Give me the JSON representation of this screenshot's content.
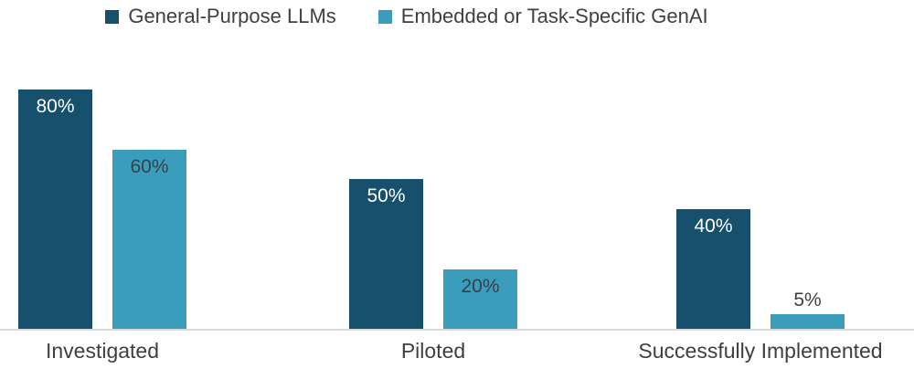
{
  "chart_data": {
    "type": "bar",
    "title": "",
    "categories": [
      "Investigated",
      "Piloted",
      "Successfully Implemented"
    ],
    "series": [
      {
        "name": "General-Purpose LLMs",
        "color": "#16506c",
        "label_color": "#ffffff",
        "values": [
          80,
          50,
          40
        ]
      },
      {
        "name": "Embedded or Task-Specific GenAI",
        "color": "#3b9dbc",
        "label_color": "#37404a",
        "values": [
          60,
          20,
          5
        ]
      }
    ],
    "value_suffix": "%",
    "ylim": [
      0,
      100
    ],
    "grid": false,
    "legend_position": "top",
    "axis_line_color": "#d9d9d9",
    "category_label_color": "#3f3f3f",
    "legend_text_color": "#404040"
  }
}
